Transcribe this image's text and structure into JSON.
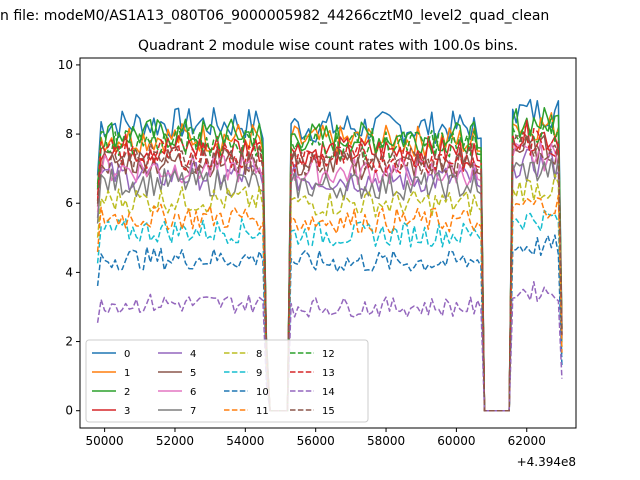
{
  "figure": {
    "suptitle": "n file: modeM0/AS1A13_080T06_9000005982_44266cztM0_level2_quad_clean"
  },
  "chart_data": {
    "type": "line",
    "title": "Quadrant 2 module wise count rates with 100.0s bins.",
    "xlabel": "",
    "ylabel": "",
    "x_offset_label": "+4.394e8",
    "xlim": [
      49300,
      63400
    ],
    "ylim": [
      -0.5,
      10.2
    ],
    "x_ticks": [
      50000,
      52000,
      54000,
      56000,
      58000,
      60000,
      62000
    ],
    "y_ticks": [
      0,
      2,
      4,
      6,
      8,
      10
    ],
    "grid": false,
    "legend": {
      "placement": "lower-left",
      "columns": 4
    },
    "segments": [
      {
        "start": 49800,
        "end": 54600
      },
      {
        "start": 55300,
        "end": 60700
      },
      {
        "start": 61600,
        "end": 63000
      }
    ],
    "gaps": [
      {
        "start": 54700,
        "end": 55200,
        "value": 0
      },
      {
        "start": 60800,
        "end": 61500,
        "value": 0
      }
    ],
    "series": [
      {
        "name": "0",
        "level": 8.3,
        "color": "#1f77b4",
        "dash": "solid"
      },
      {
        "name": "1",
        "level": 7.9,
        "color": "#ff7f0e",
        "dash": "solid"
      },
      {
        "name": "2",
        "level": 8.0,
        "color": "#2ca02c",
        "dash": "solid"
      },
      {
        "name": "3",
        "level": 7.6,
        "color": "#d62728",
        "dash": "solid"
      },
      {
        "name": "4",
        "level": 6.8,
        "color": "#9467bd",
        "dash": "solid"
      },
      {
        "name": "5",
        "level": 7.2,
        "color": "#8c564b",
        "dash": "solid"
      },
      {
        "name": "6",
        "level": 7.0,
        "color": "#e377c2",
        "dash": "solid"
      },
      {
        "name": "7",
        "level": 6.6,
        "color": "#7f7f7f",
        "dash": "solid"
      },
      {
        "name": "8",
        "level": 6.1,
        "color": "#bcbd22",
        "dash": "dashed"
      },
      {
        "name": "9",
        "level": 5.2,
        "color": "#17becf",
        "dash": "dashed"
      },
      {
        "name": "10",
        "level": 4.4,
        "color": "#1f77b4",
        "dash": "dashed"
      },
      {
        "name": "11",
        "level": 5.6,
        "color": "#ff7f0e",
        "dash": "dashed"
      },
      {
        "name": "12",
        "level": 7.8,
        "color": "#2ca02c",
        "dash": "dashed"
      },
      {
        "name": "13",
        "level": 7.4,
        "color": "#d62728",
        "dash": "dashed"
      },
      {
        "name": "14",
        "level": 3.1,
        "color": "#9467bd",
        "dash": "dashed"
      },
      {
        "name": "15",
        "level": 7.3,
        "color": "#8c564b",
        "dash": "dashed"
      }
    ]
  }
}
